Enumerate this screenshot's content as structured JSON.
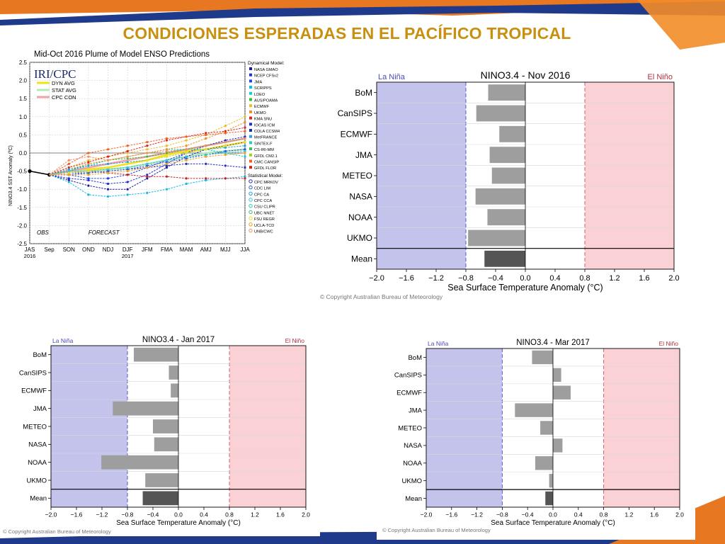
{
  "slide": {
    "title": "CONDICIONES ESPERADAS EN EL PACÍFICO TROPICAL",
    "colors": {
      "title": "#c8900e",
      "ribbon_blue": "#1f3a8a",
      "ribbon_orange": "#e87722",
      "la_nina": "#c3c3ec",
      "el_nino": "#fad1d4",
      "bar": "#9e9e9e",
      "mean_bar": "#555555"
    }
  },
  "chart_data": [
    {
      "type": "line",
      "title": "Mid-Oct 2016 Plume of Model ENSO Predictions",
      "logo_text": "IRI/CPC",
      "ylabel": "NINO3.4 SST Anomaly (ºC)",
      "xlabel": "",
      "categories": [
        "JAS",
        "Sep",
        "SON",
        "OND",
        "NDJ",
        "DJF",
        "JFM",
        "FMA",
        "MAM",
        "AMJ",
        "MJJ",
        "JJA"
      ],
      "year_labels": [
        {
          "category": "JAS",
          "text": "2016"
        },
        {
          "category": "DJF",
          "text": "2017"
        }
      ],
      "ylim": [
        -2.5,
        2.5
      ],
      "yticks": [
        "2.5",
        "2.0",
        "1.5",
        "1.0",
        "0.5",
        "0.0",
        "-0.5",
        "-1.0",
        "-1.5",
        "-2.0",
        "-2.5"
      ],
      "annotations": [
        "OBS",
        "FORECAST"
      ],
      "grid": true,
      "legend_position": "right",
      "avg_legend": [
        {
          "name": "DYN AVG",
          "color": "#f2e21a"
        },
        {
          "name": "STAT AVG",
          "color": "#b5e8b5"
        },
        {
          "name": "CPC CON",
          "color": "#f0a0a8"
        }
      ],
      "observed": [
        -0.5,
        -0.6
      ],
      "dynamical_header": "Dynamical Model:",
      "statistical_header": "Statistical Model:",
      "dynamical_models": [
        {
          "name": "NASA GMAO",
          "color": "#1a1aa0"
        },
        {
          "name": "NCEP CFSv2",
          "color": "#1f2fd0"
        },
        {
          "name": "JMA",
          "color": "#2040ee"
        },
        {
          "name": "SCRIPPS",
          "color": "#10b8e8"
        },
        {
          "name": "LDEO",
          "color": "#10d0d0"
        },
        {
          "name": "AUS/POAMA",
          "color": "#30c030"
        },
        {
          "name": "ECMWF",
          "color": "#e8c020"
        },
        {
          "name": "UKMO",
          "color": "#f09020"
        },
        {
          "name": "KMA SNU",
          "color": "#e02020"
        },
        {
          "name": "IOCAS ICM",
          "color": "#2030d0"
        },
        {
          "name": "COLA CCSM4",
          "color": "#1030a0"
        },
        {
          "name": "MetFRANCE",
          "color": "#30a0e0"
        },
        {
          "name": "SINTEX-F",
          "color": "#20d0b0"
        },
        {
          "name": "CS-IRI-MM",
          "color": "#30c060"
        },
        {
          "name": "GFDL CM2.1",
          "color": "#a0d020"
        },
        {
          "name": "CMC CANSIP",
          "color": "#f06020"
        },
        {
          "name": "GFDL FLOR",
          "color": "#d02020"
        }
      ],
      "statistical_models": [
        {
          "name": "CPC MRKOV",
          "color": "#2030c0"
        },
        {
          "name": "CDC LIM",
          "color": "#2060d0"
        },
        {
          "name": "CPC CA",
          "color": "#20a0e0"
        },
        {
          "name": "CPC CCA",
          "color": "#30c0e0"
        },
        {
          "name": "CSU CLIPR",
          "color": "#30d0b0"
        },
        {
          "name": "UBC NNET",
          "color": "#40c070"
        },
        {
          "name": "FSU REGR",
          "color": "#f0e020"
        },
        {
          "name": "UCLA-TCD",
          "color": "#f0a020"
        },
        {
          "name": "UNB/CWC",
          "color": "#f09060"
        }
      ],
      "series": [
        {
          "name": "DYN AVG",
          "color": "#f2e21a",
          "values": [
            null,
            -0.6,
            -0.5,
            -0.45,
            -0.4,
            -0.3,
            -0.2,
            -0.05,
            0.05,
            0.1,
            0.2,
            0.3
          ]
        },
        {
          "name": "STAT AVG",
          "color": "#b5e8b5",
          "values": [
            null,
            -0.6,
            -0.5,
            -0.5,
            -0.45,
            -0.4,
            -0.3,
            -0.2,
            -0.1,
            0.0,
            0.05,
            0.1
          ]
        },
        {
          "name": "CPC CON",
          "color": "#f0a0a8",
          "values": [
            null,
            -0.6,
            -0.5,
            -0.4,
            -0.3,
            -0.2,
            -0.1,
            0.0,
            0.1,
            0.2,
            0.3,
            0.4
          ]
        },
        {
          "name": "NASA GMAO",
          "color": "#1a1aa0",
          "values": [
            null,
            -0.6,
            -0.75,
            -0.9,
            -1.0,
            -1.0,
            -0.7,
            -0.4,
            -0.1,
            0.1,
            0.2,
            0.3
          ]
        },
        {
          "name": "NCEP CFSv2",
          "color": "#1f2fd0",
          "values": [
            null,
            -0.6,
            -0.7,
            -0.75,
            -0.85,
            -0.8,
            -0.6,
            -0.3,
            0.0,
            0.2,
            0.35,
            0.45
          ]
        },
        {
          "name": "JMA",
          "color": "#2040ee",
          "values": [
            null,
            -0.6,
            -0.6,
            -0.7,
            -0.7,
            -0.6,
            -0.4,
            -0.2,
            0.0,
            null,
            null,
            null
          ]
        },
        {
          "name": "SCRIPPS",
          "color": "#10b8e8",
          "values": [
            null,
            -0.6,
            -0.8,
            -1.15,
            -1.2,
            -1.15,
            -1.1,
            -1.0,
            -0.85,
            -0.75,
            -0.7,
            -0.65
          ]
        },
        {
          "name": "LDEO",
          "color": "#10d0d0",
          "values": [
            null,
            -0.6,
            -0.5,
            -0.35,
            -0.2,
            -0.1,
            0.0,
            0.1,
            0.1,
            0.1,
            0.0,
            -0.1
          ]
        },
        {
          "name": "AUS/POAMA",
          "color": "#30c030",
          "values": [
            null,
            -0.6,
            -0.5,
            -0.3,
            -0.2,
            -0.15,
            -0.1,
            0.0,
            0.1,
            0.2,
            0.3,
            0.4
          ]
        },
        {
          "name": "ECMWF",
          "color": "#e8c020",
          "values": [
            null,
            -0.6,
            -0.4,
            -0.2,
            -0.1,
            0.0,
            0.1,
            0.2,
            0.35,
            0.5,
            0.75,
            1.0
          ]
        },
        {
          "name": "UKMO",
          "color": "#f09020",
          "values": [
            null,
            -0.6,
            -0.45,
            -0.3,
            -0.2,
            -0.1,
            0.0,
            0.1,
            0.2,
            0.4,
            0.6,
            0.85
          ]
        },
        {
          "name": "KMA SNU",
          "color": "#e02020",
          "values": [
            null,
            -0.6,
            -0.4,
            -0.25,
            -0.1,
            0.05,
            0.2,
            0.35,
            0.45,
            0.55,
            0.6,
            0.7
          ]
        },
        {
          "name": "CMC CANSIP",
          "color": "#f06020",
          "values": [
            null,
            -0.6,
            -0.3,
            0.0,
            0.1,
            0.2,
            0.3,
            0.4,
            0.45,
            0.5,
            0.55,
            0.6
          ]
        },
        {
          "name": "GFDL FLOR",
          "color": "#d02020",
          "values": [
            null,
            -0.6,
            -0.55,
            -0.5,
            -0.55,
            -0.6,
            -0.65,
            -0.65,
            -0.7,
            -0.7,
            -0.7,
            -0.7
          ]
        },
        {
          "name": "CPC MRKOV",
          "color": "#2030c0",
          "values": [
            null,
            -0.6,
            -0.55,
            -0.55,
            -0.5,
            -0.45,
            -0.4,
            -0.35,
            -0.3,
            -0.3,
            -0.35,
            -0.4
          ]
        },
        {
          "name": "CDC LIM",
          "color": "#2060d0",
          "values": [
            null,
            -0.6,
            -0.6,
            -0.55,
            -0.5,
            -0.45,
            -0.35,
            -0.25,
            -0.15,
            -0.05,
            0.05,
            0.1
          ]
        },
        {
          "name": "CPC CA",
          "color": "#20a0e0",
          "values": [
            null,
            -0.6,
            -0.45,
            -0.35,
            -0.3,
            -0.25,
            -0.2,
            -0.1,
            0.0,
            0.1,
            0.15,
            0.2
          ]
        },
        {
          "name": "CPC CCA",
          "color": "#30c0e0",
          "values": [
            null,
            -0.6,
            -0.5,
            -0.5,
            -0.45,
            -0.4,
            -0.3,
            -0.2,
            -0.1,
            -0.05,
            0.0,
            0.05
          ]
        },
        {
          "name": "FSU REGR",
          "color": "#f0e020",
          "values": [
            null,
            -0.6,
            -0.55,
            -0.5,
            -0.4,
            -0.3,
            -0.2,
            -0.1,
            0.0,
            0.1,
            0.2,
            0.3
          ]
        },
        {
          "name": "UCLA-TCD",
          "color": "#f0a020",
          "values": [
            null,
            -0.6,
            -0.6,
            -0.6,
            -0.55,
            -0.5,
            -0.4,
            -0.3,
            -0.2,
            -0.1,
            -0.05,
            0.0
          ]
        },
        {
          "name": "UNB/CWC",
          "color": "#f09060",
          "values": [
            null,
            -0.6,
            -0.2,
            -0.1,
            -0.2,
            -0.1,
            0.0,
            0.05,
            0.1,
            0.2,
            0.3,
            0.4
          ]
        }
      ]
    },
    {
      "type": "bar",
      "orientation": "horizontal",
      "title": "NINO3.4 - Nov 2016",
      "xlabel": "Sea Surface Temperature Anomaly (°C)",
      "ylabel": "",
      "xlim": [
        -2.0,
        2.0
      ],
      "xticks": [
        "−2.0",
        "−1.6",
        "−1.2",
        "−0.8",
        "−0.4",
        "0.0",
        "0.4",
        "0.8",
        "1.2",
        "1.6",
        "2.0"
      ],
      "la_nina_label": "La Niña",
      "el_nino_label": "El Niño",
      "thresholds": [
        -0.8,
        0.8
      ],
      "categories": [
        "BoM",
        "CanSIPS",
        "ECMWF",
        "JMA",
        "METEO",
        "NASA",
        "NOAA",
        "UKMO",
        "Mean"
      ],
      "values": [
        -0.5,
        -0.66,
        -0.35,
        -0.48,
        -0.45,
        -0.67,
        -0.51,
        -0.77,
        -0.55
      ],
      "copyright": "© Copyright Australian Bureau of Meteorology"
    },
    {
      "type": "bar",
      "orientation": "horizontal",
      "title": "NINO3.4 - Jan 2017",
      "xlabel": "Sea Surface Temperature Anomaly (°C)",
      "ylabel": "",
      "xlim": [
        -2.0,
        2.0
      ],
      "xticks": [
        "−2.0",
        "−1.6",
        "−1.2",
        "−0.8",
        "−0.4",
        "0.0",
        "0.4",
        "0.8",
        "1.2",
        "1.6",
        "2.0"
      ],
      "la_nina_label": "La Niña",
      "el_nino_label": "El Niño",
      "thresholds": [
        -0.8,
        0.8
      ],
      "categories": [
        "BoM",
        "CanSIPS",
        "ECMWF",
        "JMA",
        "METEO",
        "NASA",
        "NOAA",
        "UKMO",
        "Mean"
      ],
      "values": [
        -0.7,
        -0.15,
        -0.12,
        -1.03,
        -0.4,
        -0.38,
        -1.21,
        -0.52,
        -0.56
      ],
      "copyright": "© Copyright Australian Bureau of Meteorology"
    },
    {
      "type": "bar",
      "orientation": "horizontal",
      "title": "NINO3.4 - Mar 2017",
      "xlabel": "Sea Surface Temperature Anomaly (°C)",
      "ylabel": "",
      "xlim": [
        -2.0,
        2.0
      ],
      "xticks": [
        "−2.0",
        "−1.6",
        "−1.2",
        "−0.8",
        "−0.4",
        "0.0",
        "0.4",
        "0.8",
        "1.2",
        "1.6",
        "2.0"
      ],
      "la_nina_label": "La Niña",
      "el_nino_label": "El Niño",
      "thresholds": [
        -0.8,
        0.8
      ],
      "categories": [
        "BoM",
        "CanSIPS",
        "ECMWF",
        "JMA",
        "METEO",
        "NASA",
        "NOAA",
        "UKMO",
        "Mean"
      ],
      "values": [
        -0.33,
        0.13,
        0.28,
        -0.6,
        -0.2,
        0.15,
        -0.28,
        -0.06,
        -0.12
      ],
      "copyright": "© Copyright Australian Bureau of Meteorology"
    }
  ]
}
